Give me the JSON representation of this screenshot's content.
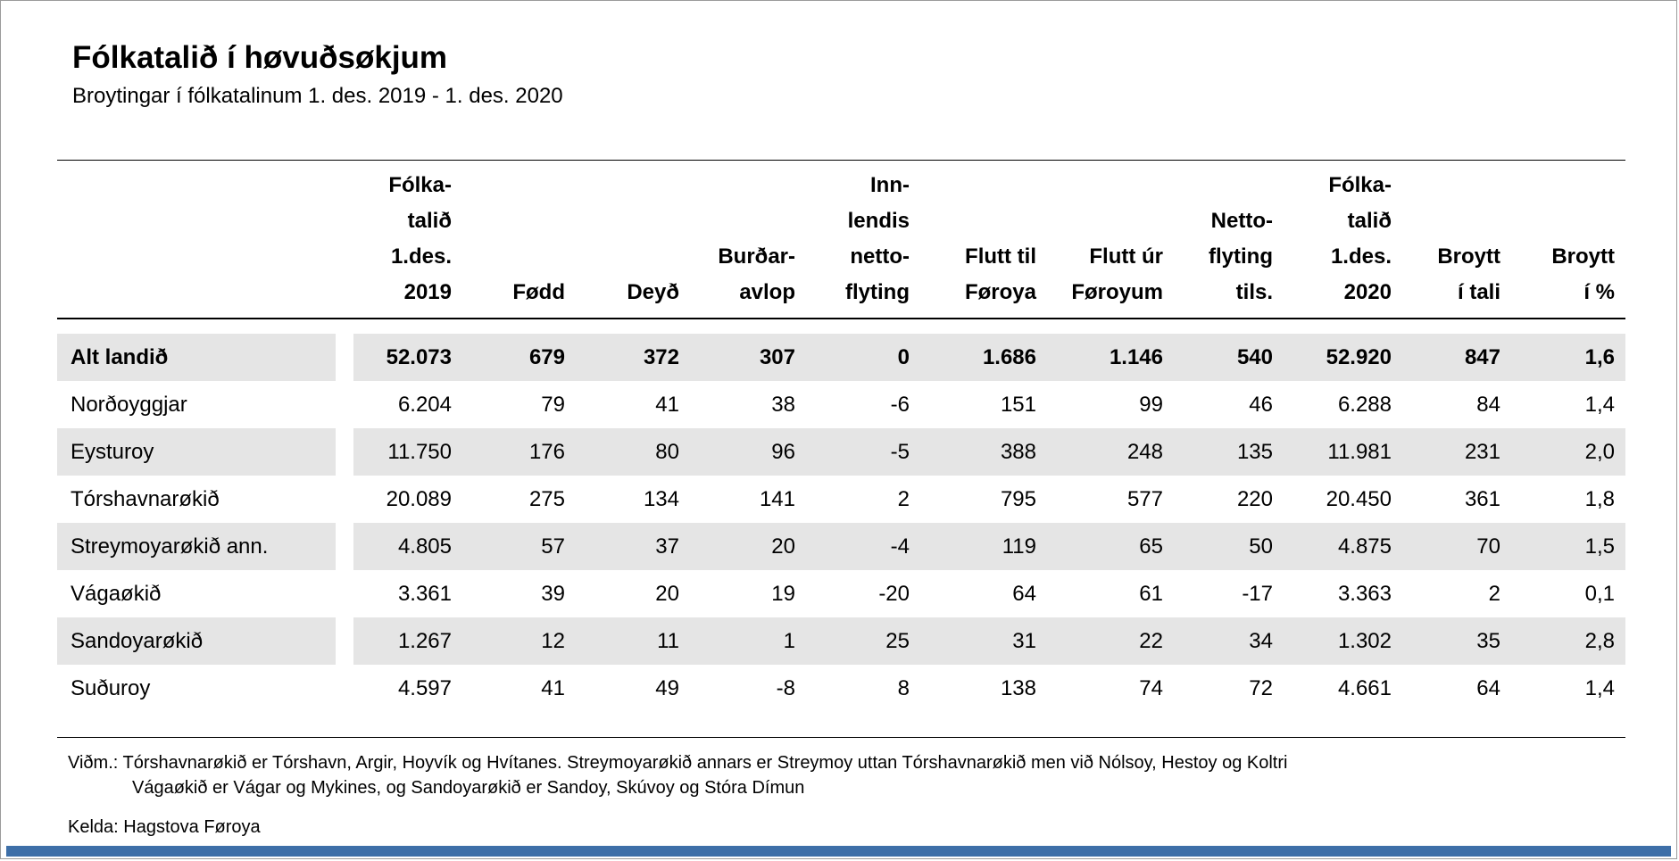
{
  "title": "Fólkatalið í høvuðsøkjum",
  "subtitle": "Broytingar í fólkatalinum 1. des. 2019 - 1. des. 2020",
  "chart_data": {
    "type": "table",
    "title": "Fólkatalið í høvuðsøkjum",
    "subtitle": "Broytingar í fólkatalinum 1. des. 2019 - 1. des. 2020",
    "columns": [
      "Fólka-\ntalið\n1.des.\n2019",
      "Fødd",
      "Deyð",
      "Burðar-\navlop",
      "Inn-\nlendis\nnetto-\nflyting",
      "Flutt til\nFøroya",
      "Flutt úr\nFøroyum",
      "Netto-\nflyting\ntils.",
      "Fólka-\ntalið\n1.des.\n2020",
      "Broytt\ní tali",
      "Broytt\ní %"
    ],
    "rows": [
      {
        "name": "Alt landið",
        "bold": true,
        "shaded": true,
        "values": [
          "52.073",
          "679",
          "372",
          "307",
          "0",
          "1.686",
          "1.146",
          "540",
          "52.920",
          "847",
          "1,6"
        ]
      },
      {
        "name": "Norðoyggjar",
        "bold": false,
        "shaded": false,
        "values": [
          "6.204",
          "79",
          "41",
          "38",
          "-6",
          "151",
          "99",
          "46",
          "6.288",
          "84",
          "1,4"
        ]
      },
      {
        "name": "Eysturoy",
        "bold": false,
        "shaded": true,
        "values": [
          "11.750",
          "176",
          "80",
          "96",
          "-5",
          "388",
          "248",
          "135",
          "11.981",
          "231",
          "2,0"
        ]
      },
      {
        "name": "Tórshavnarøkið",
        "bold": false,
        "shaded": false,
        "values": [
          "20.089",
          "275",
          "134",
          "141",
          "2",
          "795",
          "577",
          "220",
          "20.450",
          "361",
          "1,8"
        ]
      },
      {
        "name": "Streymoyarøkið ann.",
        "bold": false,
        "shaded": true,
        "values": [
          "4.805",
          "57",
          "37",
          "20",
          "-4",
          "119",
          "65",
          "50",
          "4.875",
          "70",
          "1,5"
        ]
      },
      {
        "name": "Vágaøkið",
        "bold": false,
        "shaded": false,
        "values": [
          "3.361",
          "39",
          "20",
          "19",
          "-20",
          "64",
          "61",
          "-17",
          "3.363",
          "2",
          "0,1"
        ]
      },
      {
        "name": "Sandoyarøkið",
        "bold": false,
        "shaded": true,
        "values": [
          "1.267",
          "12",
          "11",
          "1",
          "25",
          "31",
          "22",
          "34",
          "1.302",
          "35",
          "2,8"
        ]
      },
      {
        "name": "Suðuroy",
        "bold": false,
        "shaded": false,
        "values": [
          "4.597",
          "41",
          "49",
          "-8",
          "8",
          "138",
          "74",
          "72",
          "4.661",
          "64",
          "1,4"
        ]
      }
    ]
  },
  "footnotes": {
    "line1": "Viðm.: Tórshavnarøkið er Tórshavn, Argir, Hoyvík og Hvítanes. Streymoyarøkið annars er Streymoy uttan Tórshavnarøkið men við Nólsoy, Hestoy og Koltri",
    "line2": "Vágaøkið er Vágar og Mykines, og Sandoyarøkið er Sandoy, Skúvoy og Stóra Dímun",
    "source": "Kelda: Hagstova Føroya"
  },
  "colors": {
    "stripe": "#e5e5e5",
    "accent_bar": "#3E6FA8",
    "text": "#000000",
    "page_border": "#9b9b9b"
  }
}
